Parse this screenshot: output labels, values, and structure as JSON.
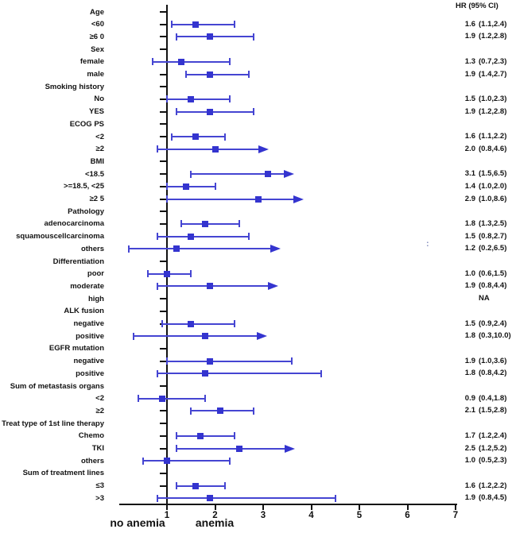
{
  "chart_data": {
    "type": "forest",
    "hr_header": "HR  (95% CI)",
    "axis": {
      "ticks": [
        "1",
        "2",
        "3",
        "4",
        "5",
        "6",
        "7"
      ],
      "range": [
        0,
        7
      ],
      "reference_value": 1,
      "left_label": "no anemia",
      "right_label": "anemia"
    },
    "stray_mark": ":",
    "rows": [
      {
        "label": "Age",
        "kind": "header"
      },
      {
        "label": "<60",
        "kind": "item",
        "hr": "1.6",
        "ci": "(1.1,2.4)",
        "est": 1.6,
        "lo": 1.1,
        "hi": 2.4
      },
      {
        "label": "≥6 0",
        "kind": "item",
        "hr": "1.9",
        "ci": "(1.2,2.8)",
        "est": 1.9,
        "lo": 1.2,
        "hi": 2.8
      },
      {
        "label": "Sex",
        "kind": "header"
      },
      {
        "label": "female",
        "kind": "item",
        "hr": "1.3",
        "ci": "(0.7,2.3)",
        "est": 1.3,
        "lo": 0.7,
        "hi": 2.3
      },
      {
        "label": "male",
        "kind": "item",
        "hr": "1.9",
        "ci": "(1.4,2.7)",
        "est": 1.9,
        "lo": 1.4,
        "hi": 2.7
      },
      {
        "label": "Smoking history",
        "kind": "header"
      },
      {
        "label": "No",
        "kind": "item",
        "hr": "1.5",
        "ci": "(1.0,2.3)",
        "est": 1.5,
        "lo": 1.0,
        "hi": 2.3
      },
      {
        "label": "YES",
        "kind": "item",
        "hr": "1.9",
        "ci": "(1.2,2.8)",
        "est": 1.9,
        "lo": 1.2,
        "hi": 2.8
      },
      {
        "label": "ECOG PS",
        "kind": "header"
      },
      {
        "label": "<2",
        "kind": "item",
        "hr": "1.6",
        "ci": "(1.1,2.2)",
        "est": 1.6,
        "lo": 1.1,
        "hi": 2.2
      },
      {
        "label": "≥2",
        "kind": "item",
        "hr": "2.0",
        "ci": "(0.8,4.6)",
        "est": 2.0,
        "lo": 0.8,
        "hi": 4.6,
        "arrow": true,
        "tip": 3.12
      },
      {
        "label": "BMI",
        "kind": "header"
      },
      {
        "label": "<18.5",
        "kind": "item",
        "hr": "3.1",
        "ci": "(1.5,6.5)",
        "est": 3.1,
        "lo": 1.5,
        "hi": 6.5,
        "arrow": true,
        "tip": 3.64
      },
      {
        "label": ">=18.5, <25",
        "kind": "item",
        "hr": "1.4",
        "ci": "(1.0,2.0)",
        "est": 1.4,
        "lo": 1.0,
        "hi": 2.0
      },
      {
        "label": "≥2 5",
        "kind": "item",
        "hr": "2.9",
        "ci": "(1.0,8.6)",
        "est": 2.9,
        "lo": 1.0,
        "hi": 8.6,
        "arrow": true,
        "tip": 3.84
      },
      {
        "label": "Pathology",
        "kind": "header"
      },
      {
        "label": "adenocarcinoma",
        "kind": "item",
        "hr": "1.8",
        "ci": "(1.3,2.5)",
        "est": 1.8,
        "lo": 1.3,
        "hi": 2.5
      },
      {
        "label": "squamouscellcarcinoma",
        "kind": "item",
        "hr": "1.5",
        "ci": "(0.8,2.7)",
        "est": 1.5,
        "lo": 0.8,
        "hi": 2.7
      },
      {
        "label": "others",
        "kind": "item",
        "hr": "1.2",
        "ci": "(0.2,6.5)",
        "est": 1.2,
        "lo": 0.2,
        "hi": 6.5,
        "arrow": true,
        "tip": 3.36
      },
      {
        "label": "Differentiation",
        "kind": "header"
      },
      {
        "label": "poor",
        "kind": "item",
        "hr": "1.0",
        "ci": "(0.6,1.5)",
        "est": 1.0,
        "lo": 0.6,
        "hi": 1.5
      },
      {
        "label": "moderate",
        "kind": "item",
        "hr": "1.9",
        "ci": "(0.8,4.4)",
        "est": 1.9,
        "lo": 0.8,
        "hi": 4.4,
        "arrow": true,
        "tip": 3.31
      },
      {
        "label": "high",
        "kind": "item",
        "hr": "NA",
        "ci": "",
        "na": true
      },
      {
        "label": "ALK fusion",
        "kind": "header"
      },
      {
        "label": "negative",
        "kind": "item",
        "hr": "1.5",
        "ci": "(0.9,2.4)",
        "est": 1.5,
        "lo": 0.9,
        "hi": 2.4
      },
      {
        "label": "positive",
        "kind": "item",
        "hr": "1.8",
        "ci": "(0.3,10.0)",
        "est": 1.8,
        "lo": 0.3,
        "hi": 10.0,
        "arrow": true,
        "tip": 3.08
      },
      {
        "label": "EGFR mutation",
        "kind": "header"
      },
      {
        "label": "negative",
        "kind": "item",
        "hr": "1.9",
        "ci": "(1.0,3.6)",
        "est": 1.9,
        "lo": 1.0,
        "hi": 3.6
      },
      {
        "label": "positive",
        "kind": "item",
        "hr": "1.8",
        "ci": "(0.8,4.2)",
        "est": 1.8,
        "lo": 0.8,
        "hi": 4.2
      },
      {
        "label": "Sum of metastasis organs",
        "kind": "header"
      },
      {
        "label": "<2",
        "kind": "item",
        "hr": "0.9",
        "ci": "(0.4,1.8)",
        "est": 0.9,
        "lo": 0.4,
        "hi": 1.8
      },
      {
        "label": "≥2",
        "kind": "item",
        "hr": "2.1",
        "ci": "(1.5,2.8)",
        "est": 2.1,
        "lo": 1.5,
        "hi": 2.8
      },
      {
        "label": "Treat type of 1st line therapy",
        "kind": "header"
      },
      {
        "label": "Chemo",
        "kind": "item",
        "hr": "1.7",
        "ci": "(1.2,2.4)",
        "est": 1.7,
        "lo": 1.2,
        "hi": 2.4
      },
      {
        "label": "TKI",
        "kind": "item",
        "hr": "2.5",
        "ci": "(1.2,5.2)",
        "est": 2.5,
        "lo": 1.2,
        "hi": 5.2,
        "arrow": true,
        "tip": 3.66
      },
      {
        "label": "others",
        "kind": "item",
        "hr": "1.0",
        "ci": "(0.5,2.3)",
        "est": 1.0,
        "lo": 0.5,
        "hi": 2.3
      },
      {
        "label": "Sum of treatment lines",
        "kind": "header"
      },
      {
        "label": "≤3",
        "kind": "item",
        "hr": "1.6",
        "ci": "(1.2,2.2)",
        "est": 1.6,
        "lo": 1.2,
        "hi": 2.2
      },
      {
        "label": ">3",
        "kind": "item",
        "hr": "1.9",
        "ci": "(0.8,4.5)",
        "est": 1.9,
        "lo": 0.8,
        "hi": 4.5
      }
    ],
    "colors": {
      "marker": "#3434cf",
      "ci_line": "#4545d2",
      "axis": "#111111",
      "text": "#121212"
    }
  }
}
